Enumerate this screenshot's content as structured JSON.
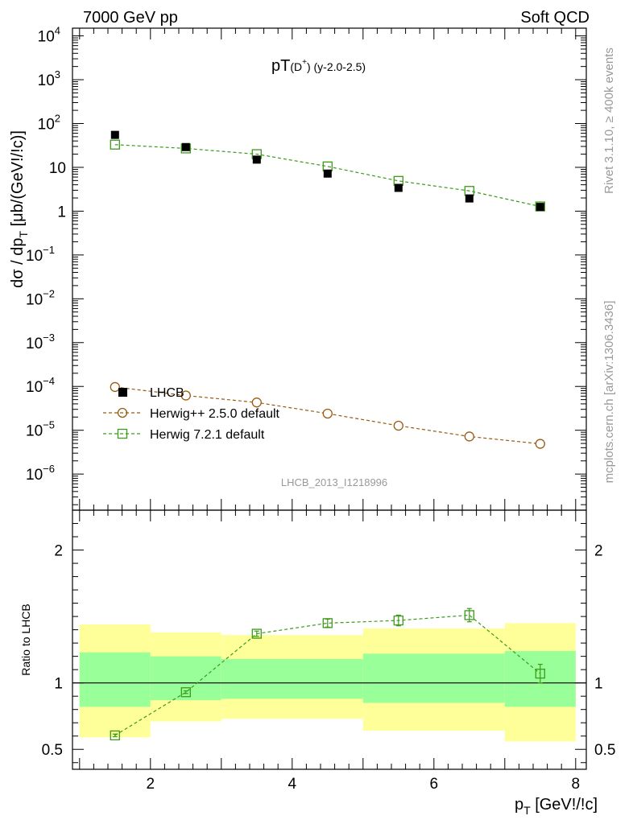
{
  "header": {
    "left": "7000 GeV pp",
    "right": "Soft QCD"
  },
  "side_labels": {
    "rivet": "Rivet 3.1.10, ≥ 400k events",
    "mcplots": "mcplots.cern.ch [arXiv:1306.3436]"
  },
  "colors": {
    "herwigpp": "#9a5a10",
    "herwig7": "#3d9a1a",
    "band_inner": "#99ff99",
    "band_outer": "#ffff99",
    "watermark": "#999999"
  },
  "chart_data": [
    {
      "type": "scatter",
      "panel": "main",
      "title": "pT(D⁺) (y-2.0-2.5)",
      "title_main": "pT",
      "title_sub": "(D",
      "title_sup": "+",
      "title_rest": ") (y-2.0-2.5)",
      "ylabel": "dσ / dp_T [μb/(GeV!/!c)]",
      "ylabel_main": "dσ / dp",
      "ylabel_sub": "T",
      "ylabel_rest": " [μb/(GeV!/!c)]",
      "yscale": "log",
      "ylim": [
        1.5e-07,
        15000
      ],
      "xlim": [
        0.9,
        8.15
      ],
      "y_ticks": [
        {
          "value": 10000,
          "base": "10",
          "exp": "4"
        },
        {
          "value": 1000,
          "base": "10",
          "exp": "3"
        },
        {
          "value": 100,
          "base": "10",
          "exp": "2"
        },
        {
          "value": 10,
          "base": "10",
          "exp": ""
        },
        {
          "value": 1,
          "base": "1",
          "exp": ""
        },
        {
          "value": 0.1,
          "base": "10",
          "exp": "−1"
        },
        {
          "value": 0.01,
          "base": "10",
          "exp": "−2"
        },
        {
          "value": 0.001,
          "base": "10",
          "exp": "−3"
        },
        {
          "value": 0.0001,
          "base": "10",
          "exp": "−4"
        },
        {
          "value": 1e-05,
          "base": "10",
          "exp": "−5"
        },
        {
          "value": 1e-06,
          "base": "10",
          "exp": "−6"
        }
      ],
      "watermark": "LHCB_2013_I1218996",
      "legend": {
        "position": "lower-left",
        "entries": [
          {
            "label": "LHCB",
            "key": "lhcb"
          },
          {
            "label": "Herwig++ 2.5.0 default",
            "key": "herwigpp"
          },
          {
            "label": "Herwig 7.2.1 default",
            "key": "herwig7"
          }
        ]
      },
      "series": [
        {
          "key": "lhcb",
          "name": "LHCB",
          "marker": "filled-square",
          "x": [
            1.5,
            2.5,
            3.5,
            4.5,
            5.5,
            6.5,
            7.5
          ],
          "y": [
            55,
            29,
            15,
            7.2,
            3.4,
            1.95,
            1.25
          ],
          "yerr": [
            3,
            3.5,
            1.5,
            0.7,
            0.3,
            0.2,
            0.12
          ]
        },
        {
          "key": "herwigpp",
          "name": "Herwig++ 2.5.0 default",
          "marker": "open-circle",
          "x": [
            1.5,
            2.5,
            3.5,
            4.5,
            5.5,
            6.5,
            7.5
          ],
          "y": [
            9.7e-05,
            6.2e-05,
            4.3e-05,
            2.4e-05,
            1.27e-05,
            7.2e-06,
            4.9e-06
          ]
        },
        {
          "key": "herwig7",
          "name": "Herwig 7.2.1 default",
          "marker": "open-square",
          "x": [
            1.5,
            2.5,
            3.5,
            4.5,
            5.5,
            6.5,
            7.5
          ],
          "y": [
            33,
            27,
            20,
            10.5,
            4.9,
            2.9,
            1.28
          ]
        }
      ]
    },
    {
      "type": "scatter",
      "panel": "ratio",
      "ylabel": "Ratio to LHCB",
      "xlabel": "p_T [GeV!/!c]",
      "xlabel_main": "p",
      "xlabel_sub": "T",
      "xlabel_rest": " [GeV!/!c]",
      "ylim": [
        0.35,
        2.3
      ],
      "xlim": [
        0.9,
        8.15
      ],
      "y_ticks_left": [
        {
          "value": 2,
          "label": "2"
        },
        {
          "value": 1,
          "label": "1"
        },
        {
          "value": 0.5,
          "label": "0.5"
        }
      ],
      "y_ticks_right": [
        {
          "value": 2,
          "label": "2"
        },
        {
          "value": 1,
          "label": "1"
        },
        {
          "value": 0.5,
          "label": "0.5"
        }
      ],
      "x_ticks": [
        {
          "value": 2,
          "label": "2"
        },
        {
          "value": 4,
          "label": "4"
        },
        {
          "value": 6,
          "label": "6"
        },
        {
          "value": 8,
          "label": "8"
        }
      ],
      "reference_line": 1,
      "bands": [
        {
          "xlo": 1.0,
          "xhi": 2.0,
          "inner": [
            0.82,
            1.23
          ],
          "outer": [
            0.59,
            1.44
          ]
        },
        {
          "xlo": 2.0,
          "xhi": 3.0,
          "inner": [
            0.87,
            1.2
          ],
          "outer": [
            0.71,
            1.38
          ]
        },
        {
          "xlo": 3.0,
          "xhi": 5.0,
          "inner": [
            0.88,
            1.18
          ],
          "outer": [
            0.73,
            1.36
          ]
        },
        {
          "xlo": 5.0,
          "xhi": 7.0,
          "inner": [
            0.85,
            1.22
          ],
          "outer": [
            0.64,
            1.41
          ]
        },
        {
          "xlo": 7.0,
          "xhi": 8.0,
          "inner": [
            0.82,
            1.24
          ],
          "outer": [
            0.56,
            1.45
          ]
        }
      ],
      "series": [
        {
          "key": "herwig7",
          "name": "Herwig 7.2.1 default",
          "marker": "open-square",
          "x": [
            1.5,
            2.5,
            3.5,
            4.5,
            5.5,
            6.5,
            7.5
          ],
          "y": [
            0.605,
            0.93,
            1.37,
            1.45,
            1.47,
            1.51,
            1.07
          ],
          "yerr": [
            0.01,
            0.01,
            0.02,
            0.03,
            0.04,
            0.05,
            0.07
          ]
        }
      ]
    }
  ]
}
